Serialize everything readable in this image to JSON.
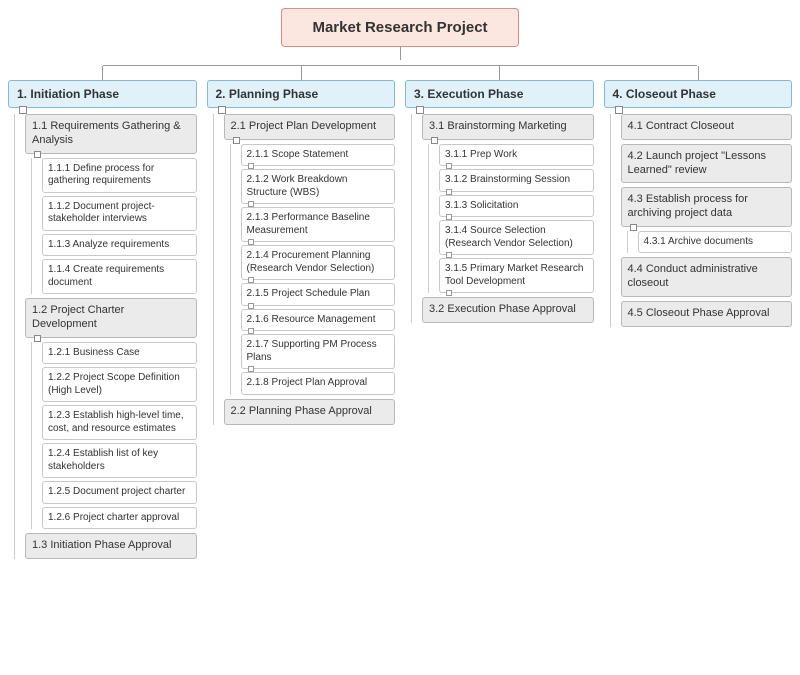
{
  "colors": {
    "root_bg": "#fce6e0",
    "root_border": "#d89080",
    "phase_bg": "#e1f1fa",
    "phase_border": "#88b8d8",
    "l2_bg": "#ebebeb",
    "l2_border": "#b8b8b8",
    "l3_bg": "#ffffff",
    "l3_border": "#c8c8c8",
    "connector": "#999999"
  },
  "root": {
    "title": "Market Research Project"
  },
  "phases": [
    {
      "num": "1.",
      "label": "Initiation Phase",
      "sections": [
        {
          "num": "1.1",
          "label": "Requirements Gathering & Analysis",
          "items": [
            {
              "num": "1.1.1",
              "label": "Define process for gathering requirements"
            },
            {
              "num": "1.1.2",
              "label": "Document project-stakeholder interviews"
            },
            {
              "num": "1.1.3",
              "label": "Analyze requirements"
            },
            {
              "num": "1.1.4",
              "label": "Create requirements document"
            }
          ]
        },
        {
          "num": "1.2",
          "label": "Project Charter Development",
          "items": [
            {
              "num": "1.2.1",
              "label": "Business Case"
            },
            {
              "num": "1.2.2",
              "label": "Project Scope Definition (High Level)"
            },
            {
              "num": "1.2.3",
              "label": "Establish high-level time, cost, and resource estimates"
            },
            {
              "num": "1.2.4",
              "label": "Establish list of key stakeholders"
            },
            {
              "num": "1.2.5",
              "label": "Document project charter"
            },
            {
              "num": "1.2.6",
              "label": "Project charter approval"
            }
          ]
        },
        {
          "num": "1.3",
          "label": "Initiation Phase Approval",
          "items": []
        }
      ]
    },
    {
      "num": "2.",
      "label": "Planning Phase",
      "sections": [
        {
          "num": "2.1",
          "label": "Project Plan Development",
          "items": [
            {
              "num": "2.1.1",
              "label": "Scope Statement",
              "toggle": true
            },
            {
              "num": "2.1.2",
              "label": "Work Breakdown Structure (WBS)",
              "toggle": true
            },
            {
              "num": "2.1.3",
              "label": "Performance Baseline Measurement",
              "toggle": true
            },
            {
              "num": "2.1.4",
              "label": "Procurement Planning (Research Vendor Selection)",
              "toggle": true
            },
            {
              "num": "2.1.5",
              "label": "Project Schedule Plan",
              "toggle": true
            },
            {
              "num": "2.1.6",
              "label": "Resource Management",
              "toggle": true
            },
            {
              "num": "2.1.7",
              "label": "Supporting PM Process Plans",
              "toggle": true
            },
            {
              "num": "2.1.8",
              "label": "Project Plan Approval"
            }
          ]
        },
        {
          "num": "2.2",
          "label": "Planning Phase Approval",
          "items": []
        }
      ]
    },
    {
      "num": "3.",
      "label": "Execution Phase",
      "sections": [
        {
          "num": "3.1",
          "label": "Brainstorming Marketing",
          "items": [
            {
              "num": "3.1.1",
              "label": "Prep Work",
              "toggle": true
            },
            {
              "num": "3.1.2",
              "label": "Brainstorming Session",
              "toggle": true
            },
            {
              "num": "3.1.3",
              "label": "Solicitation",
              "toggle": true
            },
            {
              "num": "3.1.4",
              "label": "Source Selection (Research Vendor Selection)",
              "toggle": true
            },
            {
              "num": "3.1.5",
              "label": "Primary Market Research Tool Development",
              "toggle": true
            }
          ]
        },
        {
          "num": "3.2",
          "label": "Execution Phase Approval",
          "items": []
        }
      ]
    },
    {
      "num": "4.",
      "label": "Closeout Phase",
      "sections": [
        {
          "num": "4.1",
          "label": "Contract Closeout",
          "items": []
        },
        {
          "num": "4.2",
          "label": "Launch project \"Lessons Learned\" review",
          "items": []
        },
        {
          "num": "4.3",
          "label": "Establish process for archiving project data",
          "items": [
            {
              "num": "4.3.1",
              "label": "Archive documents"
            }
          ]
        },
        {
          "num": "4.4",
          "label": "Conduct administrative closeout",
          "items": []
        },
        {
          "num": "4.5",
          "label": "Closeout Phase Approval",
          "items": []
        }
      ]
    }
  ]
}
